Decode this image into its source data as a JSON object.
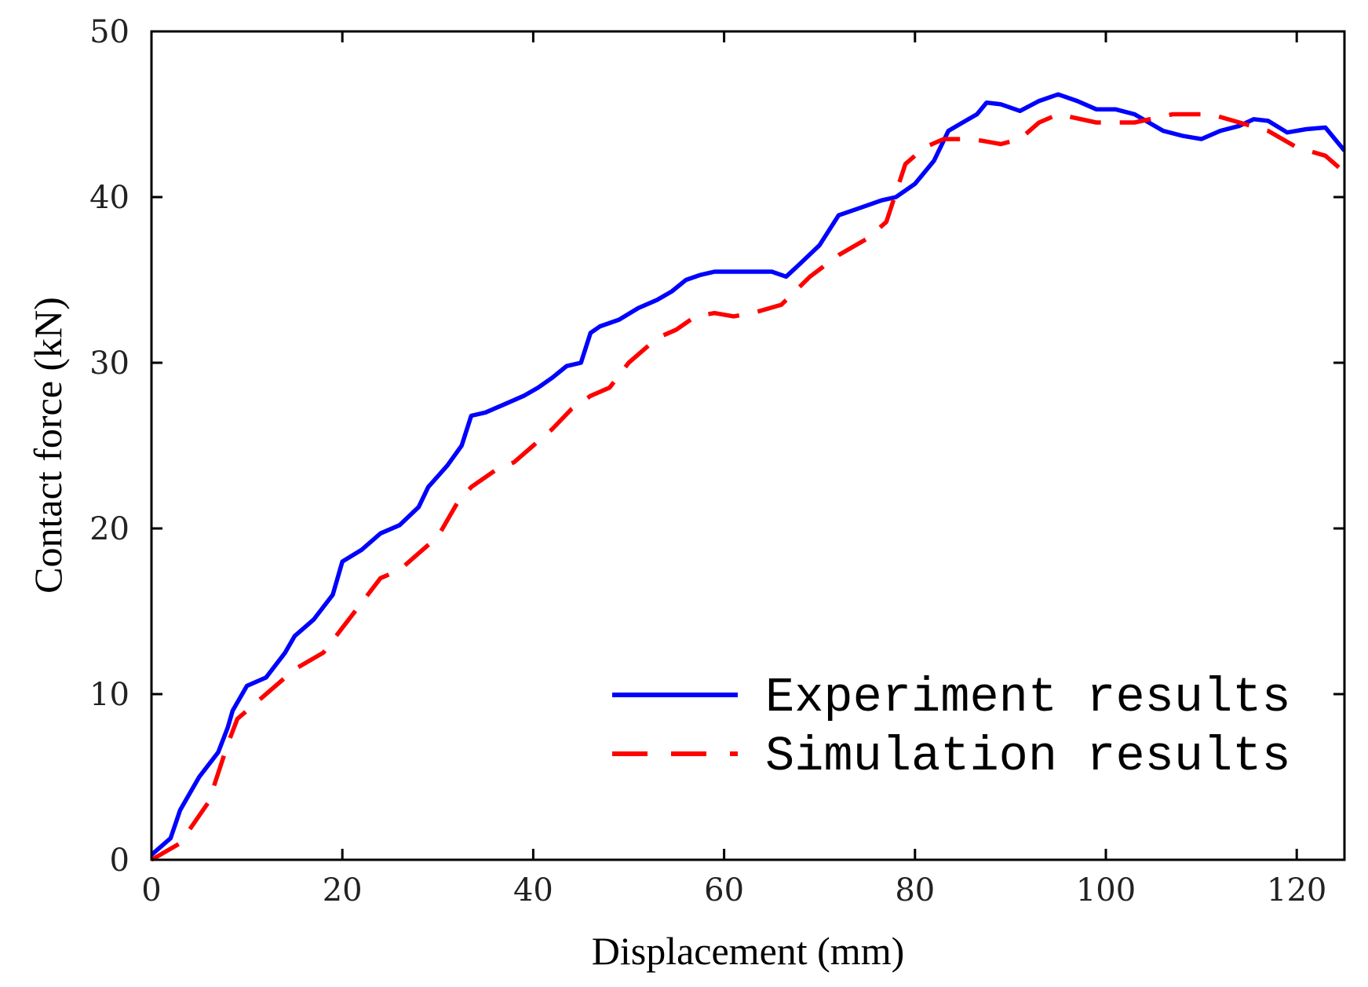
{
  "chart_data": {
    "type": "line",
    "title": "",
    "xlabel": "Displacement (mm)",
    "ylabel": "Contact force (kN)",
    "xlim": [
      0,
      125
    ],
    "ylim": [
      0,
      50
    ],
    "xticks": [
      0,
      20,
      40,
      60,
      80,
      100,
      120
    ],
    "yticks": [
      0,
      10,
      20,
      30,
      40,
      50
    ],
    "grid": false,
    "legend_position": "bottom-right",
    "series": [
      {
        "name": "Experiment results",
        "color": "#0000ff",
        "style": "solid",
        "x": [
          0,
          2,
          3,
          5,
          7,
          8,
          8.5,
          10,
          12,
          14,
          15,
          17,
          19,
          20,
          22,
          24,
          26,
          28,
          29,
          31,
          32.5,
          33.5,
          35,
          37,
          39,
          40.5,
          42,
          43.5,
          45,
          46,
          47,
          49,
          51,
          53,
          54.5,
          56,
          57.5,
          59,
          61,
          63,
          65,
          66.5,
          68,
          70,
          72,
          74,
          76.5,
          78,
          80,
          82,
          83.5,
          85,
          86.5,
          87.5,
          89,
          91,
          93,
          95,
          97,
          99,
          101,
          103,
          106,
          108,
          110,
          112,
          114,
          115.5,
          117,
          119,
          121,
          123,
          125
        ],
        "y": [
          0.3,
          1.3,
          3,
          5,
          6.5,
          8,
          9,
          10.5,
          11,
          12.5,
          13.5,
          14.5,
          16,
          18,
          18.7,
          19.7,
          20.2,
          21.3,
          22.5,
          23.8,
          25,
          26.8,
          27,
          27.5,
          28,
          28.5,
          29.1,
          29.8,
          30,
          31.8,
          32.2,
          32.6,
          33.3,
          33.8,
          34.3,
          35,
          35.3,
          35.5,
          35.5,
          35.5,
          35.5,
          35.2,
          36,
          37.1,
          38.9,
          39.3,
          39.8,
          40,
          40.8,
          42.2,
          44,
          44.5,
          45,
          45.7,
          45.6,
          45.2,
          45.8,
          46.2,
          45.8,
          45.3,
          45.3,
          45,
          44,
          43.7,
          43.5,
          44,
          44.3,
          44.7,
          44.6,
          43.9,
          44.1,
          44.2,
          42.8
        ]
      },
      {
        "name": "Simulation results",
        "color": "#ff0000",
        "style": "dashed",
        "x": [
          0,
          3,
          6,
          8,
          9,
          11,
          13,
          15,
          18,
          20,
          22,
          24,
          26,
          28,
          30,
          32,
          33.5,
          36,
          38,
          40,
          42,
          44,
          46,
          48,
          50,
          53,
          55,
          57,
          59,
          61,
          63,
          66,
          69,
          72,
          75,
          77,
          79,
          81,
          83,
          86,
          89,
          91,
          93,
          95,
          99,
          103,
          107,
          111,
          114,
          117,
          120,
          123,
          125
        ],
        "y": [
          0,
          1,
          3.5,
          7,
          8.5,
          9.5,
          10.5,
          11.5,
          12.5,
          14,
          15.5,
          17,
          17.5,
          18.5,
          19.5,
          21.5,
          22.5,
          23.5,
          24,
          25,
          26,
          27.2,
          28,
          28.5,
          30,
          31.5,
          32,
          32.8,
          33,
          32.8,
          33,
          33.5,
          35.2,
          36.5,
          37.5,
          38.5,
          42,
          43,
          43.5,
          43.5,
          43.2,
          43.5,
          44.5,
          45,
          44.5,
          44.5,
          45,
          45,
          44.5,
          44,
          43,
          42.5,
          41.5
        ]
      }
    ]
  }
}
